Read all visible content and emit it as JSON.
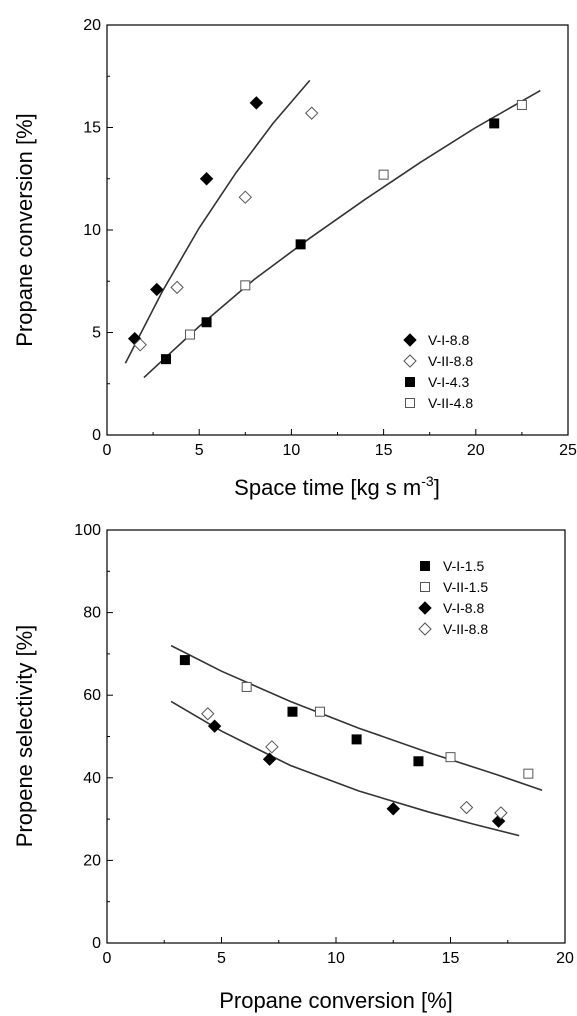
{
  "chart_data": [
    {
      "type": "scatter",
      "xlabel": "Space time [kg s m",
      "xlabel_sup": "-3",
      "xlabel_end": "]",
      "ylabel": "Propane conversion [%]",
      "xlim": [
        0,
        25
      ],
      "ylim": [
        0,
        20
      ],
      "xticks": [
        "0",
        "5",
        "10",
        "15",
        "20",
        "25"
      ],
      "yticks": [
        "0",
        "5",
        "10",
        "15",
        "20"
      ],
      "legend_position": "bottom-right",
      "series": [
        {
          "name": "V-I-8.8",
          "marker": "diamond-filled",
          "points": [
            [
              1.5,
              4.7
            ],
            [
              2.7,
              7.1
            ],
            [
              5.4,
              12.5
            ],
            [
              8.1,
              16.2
            ]
          ]
        },
        {
          "name": "V-II-8.8",
          "marker": "diamond-open",
          "points": [
            [
              1.8,
              4.4
            ],
            [
              3.8,
              7.2
            ],
            [
              7.5,
              11.6
            ],
            [
              11.1,
              15.7
            ]
          ]
        },
        {
          "name": "V-I-4.3",
          "marker": "square-filled",
          "points": [
            [
              3.2,
              3.7
            ],
            [
              5.4,
              5.5
            ],
            [
              10.5,
              9.3
            ],
            [
              21.0,
              15.2
            ]
          ]
        },
        {
          "name": "V-II-4.8",
          "marker": "square-open",
          "points": [
            [
              4.5,
              4.9
            ],
            [
              7.5,
              7.3
            ],
            [
              15.0,
              12.7
            ],
            [
              22.5,
              16.1
            ]
          ]
        }
      ],
      "fit_lines": [
        {
          "points": [
            [
              1.0,
              3.5
            ],
            [
              3.0,
              7.0
            ],
            [
              5.0,
              10.1
            ],
            [
              7.0,
              12.8
            ],
            [
              9.0,
              15.2
            ],
            [
              11.0,
              17.3
            ]
          ]
        },
        {
          "points": [
            [
              2.0,
              2.8
            ],
            [
              5.0,
              5.3
            ],
            [
              8.0,
              7.6
            ],
            [
              11.0,
              9.6
            ],
            [
              14.0,
              11.5
            ],
            [
              17.0,
              13.3
            ],
            [
              20.0,
              15.0
            ],
            [
              23.5,
              16.8
            ]
          ]
        }
      ]
    },
    {
      "type": "scatter",
      "xlabel": "Propane conversion [%]",
      "ylabel": "Propene selectivity [%]",
      "xlim": [
        0,
        20
      ],
      "ylim": [
        0,
        100
      ],
      "xticks": [
        "0",
        "5",
        "10",
        "15",
        "20"
      ],
      "yticks": [
        "0",
        "20",
        "40",
        "60",
        "80",
        "100"
      ],
      "legend_position": "top-right",
      "series": [
        {
          "name": "V-I-1.5",
          "marker": "square-filled",
          "points": [
            [
              3.4,
              68.5
            ],
            [
              8.1,
              56.0
            ],
            [
              10.9,
              49.3
            ],
            [
              13.6,
              44.0
            ]
          ]
        },
        {
          "name": "V-II-1.5",
          "marker": "square-open",
          "points": [
            [
              6.1,
              62.0
            ],
            [
              9.3,
              56.0
            ],
            [
              15.0,
              45.0
            ],
            [
              18.4,
              41.0
            ]
          ]
        },
        {
          "name": "V-I-8.8",
          "marker": "diamond-filled",
          "points": [
            [
              4.7,
              52.5
            ],
            [
              7.1,
              44.5
            ],
            [
              12.5,
              32.5
            ],
            [
              17.1,
              29.5
            ]
          ]
        },
        {
          "name": "V-II-8.8",
          "marker": "diamond-open",
          "points": [
            [
              4.4,
              55.5
            ],
            [
              7.2,
              47.5
            ],
            [
              15.7,
              32.8
            ],
            [
              17.2,
              31.5
            ]
          ]
        }
      ],
      "fit_lines": [
        {
          "points": [
            [
              2.8,
              72.0
            ],
            [
              5.0,
              65.8
            ],
            [
              8.0,
              58.5
            ],
            [
              11.0,
              52.0
            ],
            [
              14.0,
              46.2
            ],
            [
              17.0,
              40.8
            ],
            [
              19.0,
              37.0
            ]
          ]
        },
        {
          "points": [
            [
              2.8,
              58.5
            ],
            [
              5.0,
              51.3
            ],
            [
              8.0,
              43.0
            ],
            [
              11.0,
              36.8
            ],
            [
              14.0,
              31.8
            ],
            [
              16.0,
              28.8
            ],
            [
              18.0,
              26.0
            ]
          ]
        }
      ]
    }
  ]
}
